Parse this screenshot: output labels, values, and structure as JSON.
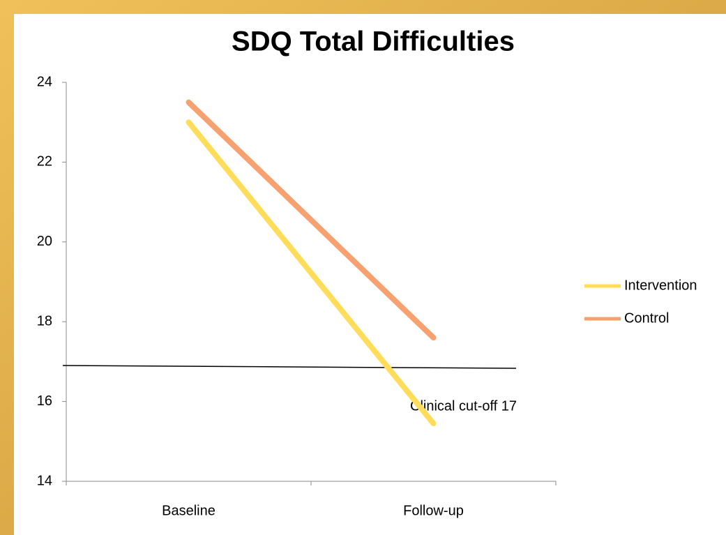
{
  "chart_data": {
    "type": "line",
    "title": "SDQ Total Difficulties",
    "categories": [
      "Baseline",
      "Follow-up"
    ],
    "series": [
      {
        "name": "Intervention",
        "color": "#ffdd5a",
        "values": [
          23,
          15.45
        ]
      },
      {
        "name": "Control",
        "color": "#f7a070",
        "values": [
          23.5,
          17.6
        ]
      }
    ],
    "ylim": [
      14,
      24
    ],
    "yticks": [
      14,
      16,
      18,
      20,
      22,
      24
    ],
    "annotation": "Clinical cut-off 17",
    "legend": "right"
  }
}
